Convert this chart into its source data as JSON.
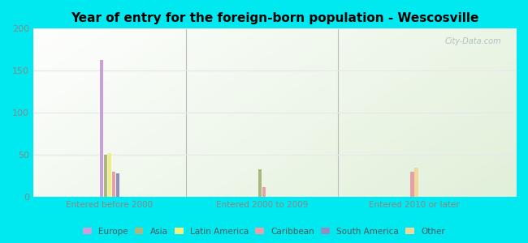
{
  "title": "Year of entry for the foreign-born population - Wescosville",
  "groups": [
    "Entered before 2000",
    "Entered 2000 to 2009",
    "Entered 2010 or later"
  ],
  "categories": [
    "Europe",
    "Asia",
    "Latin America",
    "Caribbean",
    "South America",
    "Other"
  ],
  "colors": [
    "#c9a0dc",
    "#aab880",
    "#f0f080",
    "#e8a0a8",
    "#9090c0",
    "#f0d898"
  ],
  "values": [
    [
      163,
      50,
      52,
      30,
      28,
      0
    ],
    [
      0,
      33,
      0,
      12,
      0,
      0
    ],
    [
      0,
      0,
      0,
      30,
      0,
      35
    ]
  ],
  "ylim": [
    0,
    200
  ],
  "yticks": [
    0,
    50,
    100,
    150,
    200
  ],
  "outer_bg": "#00e8f0",
  "plot_bg_left": "#e8f8e8",
  "plot_bg_right": "#d8f0e0",
  "watermark": "City-Data.com",
  "separator_color": "#bbbbbb",
  "grid_color": "#e8e8e8",
  "ytick_color": "#888888",
  "xtick_color": "#888888"
}
